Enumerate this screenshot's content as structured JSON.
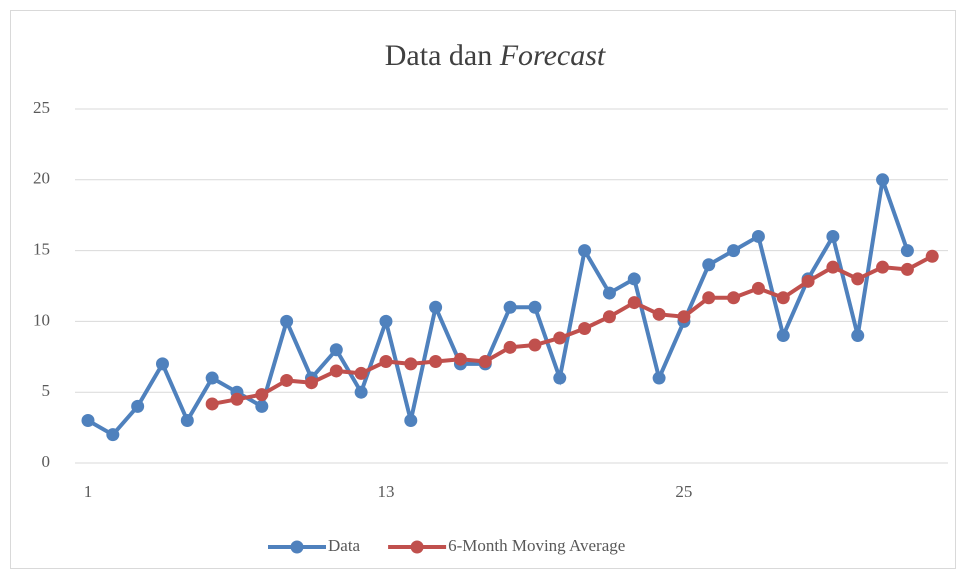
{
  "chart_data": {
    "type": "line",
    "title": {
      "text": "Data dan",
      "emphasis": "Forecast"
    },
    "categories": [
      1,
      null,
      null,
      null,
      null,
      null,
      null,
      null,
      null,
      null,
      null,
      null,
      13,
      null,
      null,
      null,
      null,
      null,
      null,
      null,
      null,
      null,
      null,
      null,
      25,
      null,
      null,
      null,
      null,
      null,
      null,
      null,
      null,
      null,
      null
    ],
    "series": [
      {
        "name": "Data",
        "color": "#4f81bd",
        "values": [
          3,
          2,
          4,
          7,
          3,
          6,
          5,
          4,
          10,
          6,
          8,
          5,
          10,
          3,
          11,
          7,
          7,
          11,
          11,
          6,
          15,
          12,
          13,
          6,
          10,
          14,
          15,
          16,
          9,
          13,
          16,
          9,
          20,
          15,
          null
        ]
      },
      {
        "name": "6-Month Moving Average",
        "color": "#c0504d",
        "values": [
          null,
          null,
          null,
          null,
          null,
          4.17,
          4.5,
          4.83,
          5.83,
          5.67,
          6.5,
          6.33,
          7.17,
          7,
          7.17,
          7.33,
          7.17,
          8.17,
          8.33,
          8.83,
          9.5,
          10.33,
          11.33,
          10.5,
          10.33,
          11.67,
          11.67,
          12.33,
          11.67,
          12.83,
          13.83,
          13,
          13.83,
          13.67,
          14.6
        ]
      }
    ],
    "ylim": [
      0,
      25
    ],
    "yticks": [
      0,
      5,
      10,
      15,
      20,
      25
    ],
    "grid": true,
    "legend": "bottom"
  }
}
